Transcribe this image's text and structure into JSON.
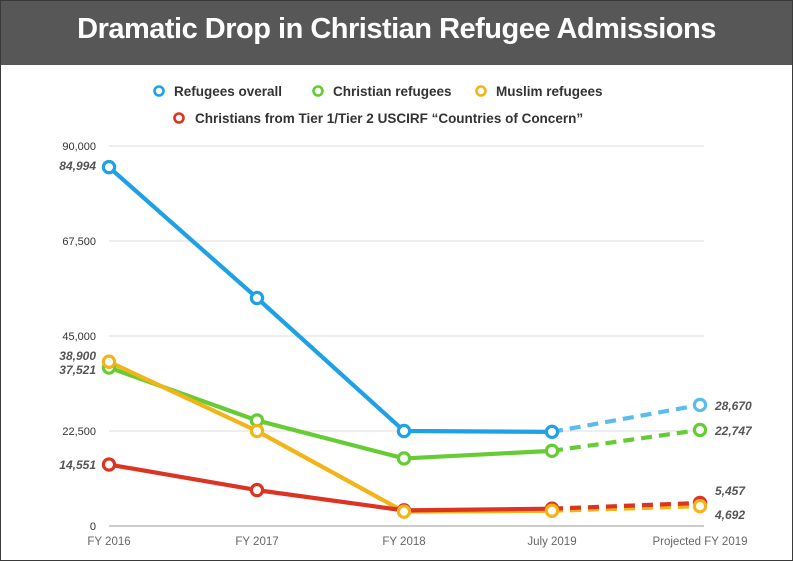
{
  "title": "Dramatic Drop in Christian Refugee Admissions",
  "chart_data": {
    "type": "line",
    "categories": [
      "FY 2016",
      "FY 2017",
      "FY 2018",
      "July 2019",
      "Projected FY 2019"
    ],
    "y_ticks": [
      "0",
      "22,500",
      "45,000",
      "67,500",
      "90,000"
    ],
    "ylim": [
      0,
      90000
    ],
    "grid": true,
    "legend_position": "top",
    "projection_dashed_from_index": 3,
    "series": [
      {
        "key": "overall",
        "name": "Refugees overall",
        "color": "#1ea1e5",
        "values": [
          84994,
          54000,
          22500,
          22300,
          28670
        ]
      },
      {
        "key": "christian",
        "name": "Christian refugees",
        "color": "#66cc33",
        "values": [
          37521,
          25000,
          16000,
          17800,
          22747
        ]
      },
      {
        "key": "muslim",
        "name": "Muslim refugees",
        "color": "#f2b519",
        "values": [
          38900,
          22500,
          3400,
          3600,
          4692
        ]
      },
      {
        "key": "tier",
        "name": "Christians from Tier 1/Tier 2 USCIRF “Countries of Concern”",
        "color": "#dd3322",
        "values": [
          14551,
          8500,
          3700,
          4100,
          5457
        ]
      }
    ],
    "data_labels": {
      "overall_start": "84,994",
      "overall_end": "28,670",
      "christian_start": "37,521",
      "christian_end": "22,747",
      "muslim_start": "38,900",
      "muslim_end": "4,692",
      "tier_start": "14,551",
      "tier_end": "5,457"
    }
  }
}
